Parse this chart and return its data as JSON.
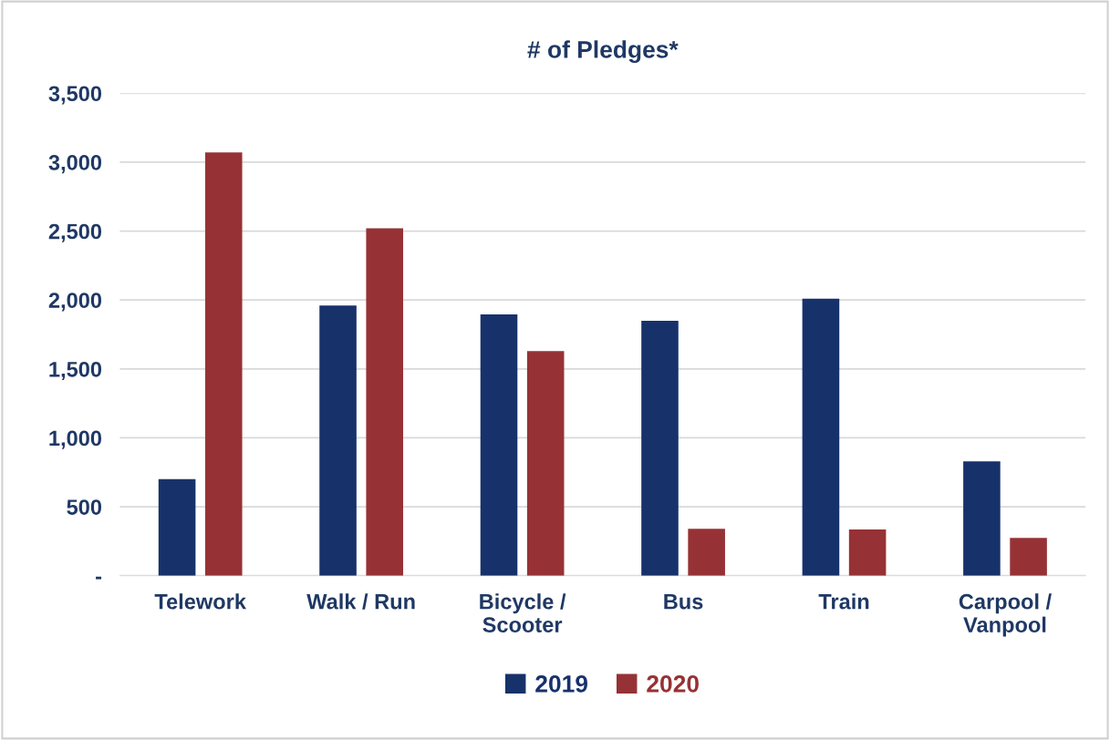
{
  "chart_data": {
    "type": "bar",
    "title": "# of Pledges*",
    "categories": [
      "Telework",
      "Walk / Run",
      "Bicycle /\nScooter",
      "Bus",
      "Train",
      "Carpool /\nVanpool"
    ],
    "series": [
      {
        "name": "2019",
        "color": "#17326b",
        "values": [
          700,
          1960,
          1895,
          1850,
          2010,
          830
        ]
      },
      {
        "name": "2020",
        "color": "#963235",
        "values": [
          3070,
          2520,
          1630,
          340,
          335,
          275
        ]
      }
    ],
    "ylim": [
      0,
      3500
    ],
    "yticks": [
      {
        "value": 0,
        "label": "-"
      },
      {
        "value": 500,
        "label": "500"
      },
      {
        "value": 1000,
        "label": "1,000"
      },
      {
        "value": 1500,
        "label": "1,500"
      },
      {
        "value": 2000,
        "label": "2,000"
      },
      {
        "value": 2500,
        "label": "2,500"
      },
      {
        "value": 3000,
        "label": "3,000"
      },
      {
        "value": 3500,
        "label": "3,500"
      }
    ],
    "grid": "y",
    "legend": "bottom"
  }
}
